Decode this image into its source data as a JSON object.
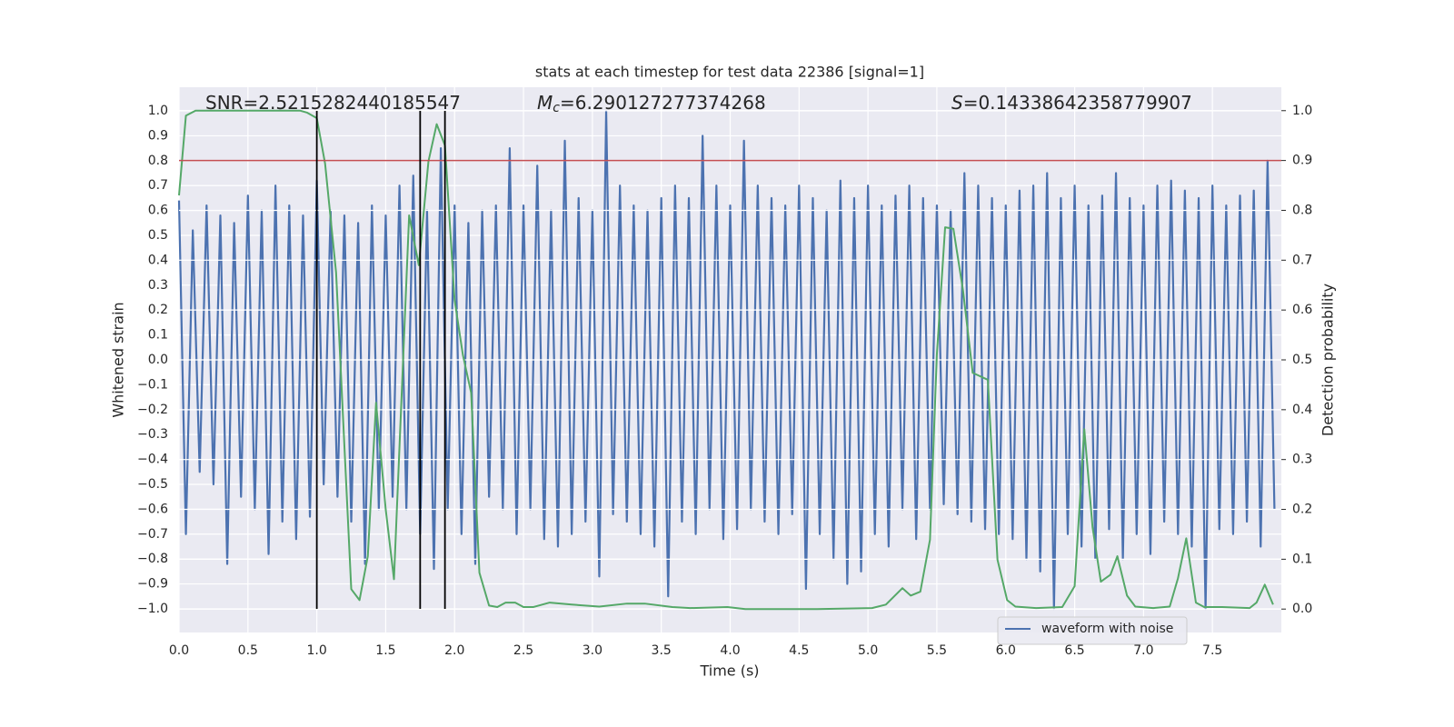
{
  "chart_data": {
    "type": "line",
    "title": "stats at each timestep for test data 22386 [signal=1]",
    "x_label": "Time (s)",
    "y_label": "Whitened strain",
    "y2_label": "Detection probability",
    "annotations": [
      {
        "text": "SNR=2.5215282440185547"
      },
      {
        "symbol": "M",
        "subscript": "c",
        "text": "=6.290127277374268"
      },
      {
        "symbol": "S",
        "text": "=0.14338642358779907"
      }
    ],
    "xlim": [
      0,
      8
    ],
    "ylim": [
      -1.095,
      1.095
    ],
    "y2lim": [
      -0.047,
      1.047
    ],
    "xticks": [
      {
        "value": 0,
        "label": "0.0"
      },
      0.5,
      {
        "value": 1,
        "label": "1.0"
      },
      1.5,
      {
        "value": 2,
        "label": "2.0"
      },
      2.5,
      {
        "value": 3,
        "label": "3.0"
      },
      3.5,
      {
        "value": 4,
        "label": "4.0"
      },
      4.5,
      {
        "value": 5,
        "label": "5.0"
      },
      5.5,
      {
        "value": 6,
        "label": "6.0"
      },
      6.5,
      {
        "value": 7,
        "label": "7.0"
      },
      7.5
    ],
    "yticks": [
      {
        "value": -1,
        "label": "−1.0"
      },
      {
        "value": -0.9,
        "label": "−0.9"
      },
      {
        "value": -0.8,
        "label": "−0.8"
      },
      {
        "value": -0.7,
        "label": "−0.7"
      },
      {
        "value": -0.6,
        "label": "−0.6"
      },
      {
        "value": -0.5,
        "label": "−0.5"
      },
      {
        "value": -0.4,
        "label": "−0.4"
      },
      {
        "value": -0.3,
        "label": "−0.3"
      },
      {
        "value": -0.2,
        "label": "−0.2"
      },
      {
        "value": -0.1,
        "label": "−0.1"
      },
      {
        "value": 0,
        "label": "0.0"
      },
      0.1,
      0.2,
      0.3,
      0.4,
      0.5,
      0.6,
      0.7,
      0.8,
      0.9,
      {
        "value": 1,
        "label": "1.0"
      }
    ],
    "y2ticks": [
      {
        "value": 0,
        "label": "0.0"
      },
      0.1,
      0.2,
      0.3,
      0.4,
      0.5,
      0.6,
      0.7,
      0.8,
      0.9,
      {
        "value": 1,
        "label": "1.0"
      }
    ],
    "grid": true,
    "background": "#eaeaf2",
    "legend": "lower right",
    "series": [
      {
        "name": "waveform with noise",
        "color": "#4c72b0",
        "x": [
          0,
          0.05,
          0.1,
          0.15,
          0.2,
          0.25,
          0.3,
          0.35,
          0.4,
          0.45,
          0.5,
          0.55,
          0.6,
          0.65,
          0.7,
          0.75,
          0.8,
          0.85,
          0.9,
          0.95,
          1,
          1.05,
          1.1,
          1.15,
          1.2,
          1.25,
          1.3,
          1.35,
          1.4,
          1.45,
          1.5,
          1.55,
          1.6,
          1.65,
          1.7,
          1.75,
          1.8,
          1.85,
          1.9,
          1.95,
          2,
          2.05,
          2.1,
          2.15,
          2.2,
          2.25,
          2.3,
          2.35,
          2.4,
          2.45,
          2.5,
          2.55,
          2.6,
          2.65,
          2.7,
          2.75,
          2.8,
          2.85,
          2.9,
          2.95,
          3,
          3.05,
          3.1,
          3.15,
          3.2,
          3.25,
          3.3,
          3.35,
          3.4,
          3.45,
          3.5,
          3.55,
          3.6,
          3.65,
          3.7,
          3.75,
          3.8,
          3.85,
          3.9,
          3.95,
          4,
          4.05,
          4.1,
          4.15,
          4.2,
          4.25,
          4.3,
          4.35,
          4.4,
          4.45,
          4.5,
          4.55,
          4.6,
          4.65,
          4.7,
          4.75,
          4.8,
          4.85,
          4.9,
          4.95,
          5,
          5.05,
          5.1,
          5.15,
          5.2,
          5.25,
          5.3,
          5.35,
          5.4,
          5.45,
          5.5,
          5.55,
          5.6,
          5.65,
          5.7,
          5.75,
          5.8,
          5.85,
          5.9,
          5.95,
          6,
          6.05,
          6.1,
          6.15,
          6.2,
          6.25,
          6.3,
          6.35,
          6.4,
          6.45,
          6.5,
          6.55,
          6.6,
          6.65,
          6.7,
          6.75,
          6.8,
          6.85,
          6.9,
          6.95,
          7,
          7.05,
          7.1,
          7.15,
          7.2,
          7.25,
          7.3,
          7.35,
          7.4,
          7.45,
          7.5,
          7.55,
          7.6,
          7.65,
          7.7,
          7.75,
          7.8,
          7.85,
          7.9,
          7.95
        ],
        "values": [
          0.64,
          -0.7,
          0.52,
          -0.45,
          0.62,
          -0.5,
          0.58,
          -0.82,
          0.55,
          -0.55,
          0.66,
          -0.6,
          0.6,
          -0.78,
          0.7,
          -0.65,
          0.62,
          -0.72,
          0.58,
          -0.63,
          0.72,
          -0.5,
          0.6,
          -0.55,
          0.58,
          -0.65,
          0.55,
          -0.82,
          0.62,
          -0.6,
          0.58,
          -0.55,
          0.7,
          -0.6,
          0.74,
          -0.7,
          0.6,
          -0.84,
          0.85,
          -0.6,
          0.62,
          -0.7,
          0.55,
          -0.82,
          0.6,
          -0.55,
          0.62,
          -0.6,
          0.85,
          -0.7,
          0.62,
          -0.6,
          0.78,
          -0.72,
          0.6,
          -0.75,
          0.88,
          -0.7,
          0.65,
          -0.65,
          0.6,
          -0.87,
          1.0,
          -0.62,
          0.7,
          -0.65,
          0.62,
          -0.7,
          0.6,
          -0.75,
          0.65,
          -0.95,
          0.7,
          -0.65,
          0.65,
          -0.7,
          0.9,
          -0.6,
          0.7,
          -0.72,
          0.62,
          -0.68,
          0.88,
          -0.6,
          0.7,
          -0.65,
          0.65,
          -0.7,
          0.62,
          -0.62,
          0.7,
          -0.92,
          0.65,
          -0.7,
          0.6,
          -0.8,
          0.72,
          -0.9,
          0.65,
          -0.85,
          0.7,
          -0.7,
          0.62,
          -0.75,
          0.66,
          -0.6,
          0.7,
          -0.72,
          0.65,
          -0.6,
          0.62,
          -0.58,
          0.6,
          -0.62,
          0.75,
          -0.65,
          0.7,
          -0.68,
          0.65,
          -0.7,
          0.62,
          -0.72,
          0.68,
          -0.8,
          0.7,
          -0.85,
          0.75,
          -1.0,
          0.65,
          -0.7,
          0.7,
          -0.75,
          0.62,
          -0.8,
          0.66,
          -0.68,
          0.75,
          -0.8,
          0.65,
          -0.7,
          0.62,
          -0.78,
          0.7,
          -0.65,
          0.72,
          -0.7,
          0.68,
          -0.75,
          0.65,
          -1.0,
          0.7,
          -0.68,
          0.62,
          -0.7,
          0.66,
          -0.65,
          0.68,
          -0.75,
          0.8,
          -0.6
        ]
      },
      {
        "color": "#55a868",
        "axis": "y2",
        "x": [
          0,
          0.05,
          0.12,
          0.88,
          0.93,
          1.0,
          1.06,
          1.14,
          1.25,
          1.31,
          1.37,
          1.43,
          1.5,
          1.56,
          1.67,
          1.74,
          1.81,
          1.87,
          1.93,
          2.0,
          2.06,
          2.12,
          2.18,
          2.25,
          2.31,
          2.37,
          2.44,
          2.5,
          2.57,
          2.69,
          2.85,
          3.05,
          3.25,
          3.38,
          3.58,
          3.71,
          3.98,
          4.11,
          4.31,
          4.63,
          5.03,
          5.13,
          5.25,
          5.31,
          5.38,
          5.45,
          5.5,
          5.56,
          5.62,
          5.69,
          5.76,
          5.87,
          5.94,
          6.01,
          6.07,
          6.22,
          6.41,
          6.5,
          6.57,
          6.63,
          6.69,
          6.76,
          6.81,
          6.88,
          6.94,
          7.07,
          7.19,
          7.25,
          7.31,
          7.38,
          7.44,
          7.57,
          7.77,
          7.82,
          7.88,
          7.94
        ],
        "values": [
          0.83,
          0.99,
          1.0,
          1.0,
          0.996,
          0.985,
          0.894,
          0.675,
          0.04,
          0.018,
          0.106,
          0.414,
          0.2,
          0.06,
          0.79,
          0.69,
          0.898,
          0.973,
          0.93,
          0.62,
          0.51,
          0.434,
          0.073,
          0.007,
          0.004,
          0.013,
          0.013,
          0.004,
          0.004,
          0.013,
          0.009,
          0.005,
          0.011,
          0.011,
          0.004,
          0.002,
          0.004,
          0.0,
          0.0,
          0.0,
          0.002,
          0.009,
          0.042,
          0.027,
          0.035,
          0.139,
          0.511,
          0.766,
          0.763,
          0.639,
          0.474,
          0.46,
          0.099,
          0.018,
          0.005,
          0.002,
          0.004,
          0.046,
          0.361,
          0.164,
          0.055,
          0.069,
          0.106,
          0.027,
          0.005,
          0.002,
          0.005,
          0.062,
          0.142,
          0.013,
          0.004,
          0.004,
          0.002,
          0.013,
          0.049,
          0.009
        ]
      }
    ],
    "threshold": {
      "value": 0.9,
      "axis": "y2",
      "color": "#c44e52"
    },
    "vlines": {
      "x": [
        1.0,
        1.75,
        1.93
      ],
      "ymin": -1,
      "ymax": 1,
      "color": "#000000"
    }
  }
}
